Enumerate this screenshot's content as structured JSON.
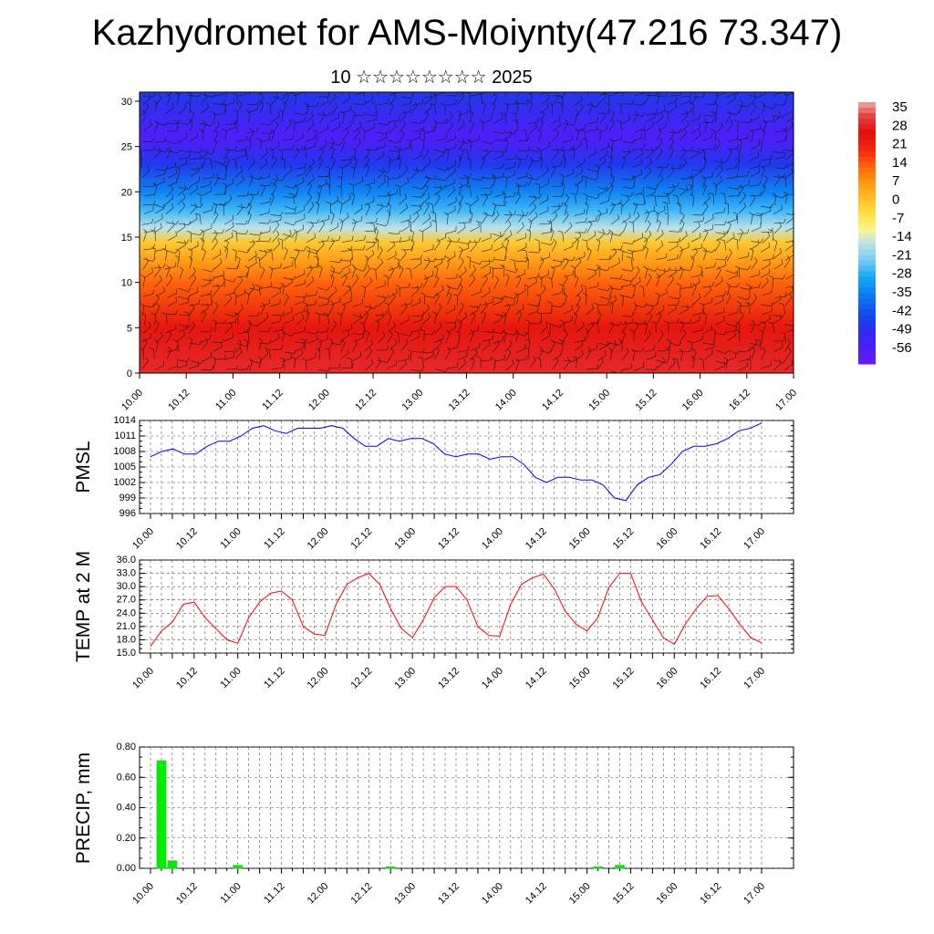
{
  "header": {
    "title": "Kazhydromet for AMS-Moiynty(47.216 73.347)",
    "subtitle": "10 ☆☆☆☆☆☆☆☆ 2025"
  },
  "colors": {
    "pmsl_line": "#0000ff",
    "temp_line": "#ff0000",
    "precip_bar": "#00ee00",
    "precip_bar_edge": "#33cc33"
  },
  "chart_data": [
    {
      "type": "heatmap",
      "title": "",
      "xlabel": "",
      "ylabel": "",
      "x_tick_labels": [
        "10.00",
        "10.12",
        "11.00",
        "11.12",
        "12.00",
        "12.12",
        "13.00",
        "13.12",
        "14.00",
        "14.12",
        "15.00",
        "15.12",
        "16.00",
        "16.12",
        "17.00"
      ],
      "y_tick_labels": [
        "0",
        "5",
        "10",
        "15",
        "20",
        "25",
        "30"
      ],
      "ylim": [
        0,
        31
      ],
      "overlay": "wind barbs",
      "colorbar": {
        "labels": [
          "35",
          "28",
          "21",
          "14",
          "7",
          "0",
          "-7",
          "-14",
          "-21",
          "-28",
          "-35",
          "-42",
          "-49",
          "-56"
        ],
        "range": [
          -60,
          38
        ]
      },
      "field_profile": {
        "levels": [
          0,
          5,
          10,
          12,
          14.5,
          16,
          18,
          20,
          23,
          26,
          31
        ],
        "values": [
          30,
          25,
          14,
          8,
          0,
          -15,
          -25,
          -33,
          -45,
          -55,
          -45
        ]
      }
    },
    {
      "type": "line",
      "title": "",
      "ylabel": "PMSL",
      "xlabel": "",
      "x_tick_labels": [
        "10.00",
        "10.12",
        "11.00",
        "11.12",
        "12.00",
        "12.12",
        "13.00",
        "13.12",
        "14.00",
        "14.12",
        "15.00",
        "15.12",
        "16.00",
        "16.12",
        "17.00"
      ],
      "y_tick_labels": [
        "1014",
        "1011",
        "1008",
        "1005",
        "1002",
        "999",
        "996"
      ],
      "ylim": [
        996,
        1014
      ],
      "x_hours_step": 3,
      "series": [
        {
          "values": [
            1007,
            1008,
            1008.5,
            1007.5,
            1007.5,
            1009,
            1010,
            1010,
            1011,
            1012.5,
            1013,
            1012,
            1011.5,
            1012.5,
            1012.5,
            1012.5,
            1013,
            1012.5,
            1010.5,
            1009,
            1009,
            1010.5,
            1010,
            1010.5,
            1010.5,
            1009.5,
            1007.5,
            1007,
            1007.5,
            1007.5,
            1006.5,
            1007,
            1007,
            1005.5,
            1003,
            1002,
            1003,
            1003,
            1002.5,
            1002.5,
            1001.5,
            999,
            998.5,
            1001.5,
            1003,
            1003.5,
            1005.5,
            1008,
            1009,
            1009,
            1009.5,
            1010.5,
            1012,
            1012.5,
            1013.5
          ]
        }
      ]
    },
    {
      "type": "line",
      "title": "",
      "ylabel": "TEMP at 2 M",
      "xlabel": "",
      "x_tick_labels": [
        "10.00",
        "10.12",
        "11.00",
        "11.12",
        "12.00",
        "12.12",
        "13.00",
        "13.12",
        "14.00",
        "14.12",
        "15.00",
        "15.12",
        "16.00",
        "16.12",
        "17.00"
      ],
      "y_tick_labels": [
        "36.0",
        "33.0",
        "30.0",
        "27.0",
        "24.0",
        "21.0",
        "18.0",
        "15.0"
      ],
      "ylim": [
        15,
        36
      ],
      "x_hours_step": 3,
      "series": [
        {
          "values": [
            16.5,
            20,
            22,
            26,
            26.5,
            23,
            20.5,
            18,
            17.2,
            23,
            26.5,
            28.5,
            29,
            27,
            21,
            19.3,
            19,
            26,
            30.5,
            32,
            33,
            30.5,
            25,
            20.5,
            18.5,
            22.5,
            27.5,
            30,
            30,
            27,
            21,
            19,
            18.8,
            26,
            30.5,
            32,
            32.8,
            29.5,
            24.5,
            21.5,
            20,
            23,
            29.8,
            33,
            33,
            26.5,
            22.5,
            18.5,
            17,
            21.5,
            25,
            27.8,
            28,
            25,
            21.5,
            18.5,
            17.3
          ]
        }
      ]
    },
    {
      "type": "bar",
      "title": "",
      "ylabel": "PRECIP, mm",
      "xlabel": "",
      "x_tick_labels": [
        "10.00",
        "10.12",
        "11.00",
        "11.12",
        "12.00",
        "12.12",
        "13.00",
        "13.12",
        "14.00",
        "14.12",
        "15.00",
        "15.12",
        "16.00",
        "16.12",
        "17.00"
      ],
      "y_tick_labels": [
        "0.80",
        "0.60",
        "0.40",
        "0.20",
        "0.00"
      ],
      "ylim": [
        0,
        0.8
      ],
      "x_hours_step": 3,
      "bars": [
        {
          "step": 1,
          "value": 0.71
        },
        {
          "step": 2,
          "value": 0.05
        },
        {
          "step": 8,
          "value": 0.02
        },
        {
          "step": 22,
          "value": 0.01
        },
        {
          "step": 41,
          "value": 0.01
        },
        {
          "step": 43,
          "value": 0.02
        }
      ]
    }
  ]
}
